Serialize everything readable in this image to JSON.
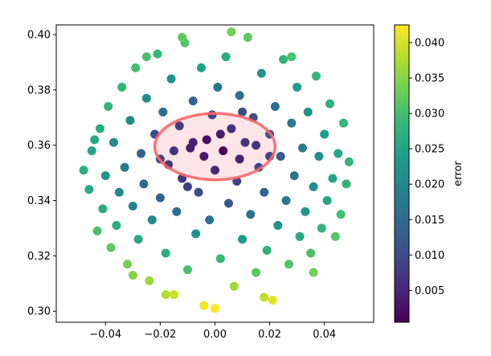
{
  "chart_data": {
    "type": "scatter",
    "title": "",
    "xlabel": "",
    "ylabel": "",
    "xlim": [
      -0.058,
      0.058
    ],
    "ylim": [
      0.296,
      0.4035
    ],
    "xticks": [
      -0.04,
      -0.02,
      0.0,
      0.02,
      0.04
    ],
    "xtick_labels": [
      "−0.04",
      "−0.02",
      "0.00",
      "0.02",
      "0.04"
    ],
    "yticks": [
      0.3,
      0.32,
      0.34,
      0.36,
      0.38,
      0.4
    ],
    "ytick_labels": [
      "0.30",
      "0.32",
      "0.34",
      "0.36",
      "0.38",
      "0.40"
    ],
    "grid": false,
    "colormap": "viridis",
    "colorbar": {
      "label": "error",
      "min": 0.0005,
      "max": 0.0425,
      "ticks": [
        0.005,
        0.01,
        0.015,
        0.02,
        0.025,
        0.03,
        0.035,
        0.04
      ],
      "tick_labels": [
        "0.005",
        "0.010",
        "0.015",
        "0.020",
        "0.025",
        "0.030",
        "0.035",
        "0.040"
      ]
    },
    "annotation": {
      "shape": "ellipse",
      "center": [
        0.0,
        0.3595
      ],
      "width": 0.044,
      "height": 0.024,
      "edge_color": "#ff6666",
      "fill_color": "#ffe4e8"
    },
    "points": [
      [
        -0.048,
        0.351,
        0.0272
      ],
      [
        -0.046,
        0.344,
        0.0255
      ],
      [
        -0.045,
        0.358,
        0.0251
      ],
      [
        -0.043,
        0.329,
        0.0302
      ],
      [
        -0.042,
        0.366,
        0.0266
      ],
      [
        -0.041,
        0.337,
        0.0263
      ],
      [
        -0.04,
        0.349,
        0.0222
      ],
      [
        -0.039,
        0.374,
        0.0282
      ],
      [
        -0.038,
        0.323,
        0.032
      ],
      [
        -0.037,
        0.361,
        0.0214
      ],
      [
        -0.036,
        0.331,
        0.0268
      ],
      [
        -0.035,
        0.343,
        0.0204
      ],
      [
        -0.034,
        0.381,
        0.0286
      ],
      [
        -0.033,
        0.352,
        0.0178
      ],
      [
        -0.032,
        0.317,
        0.0335
      ],
      [
        -0.031,
        0.369,
        0.0206
      ],
      [
        -0.03,
        0.338,
        0.0189
      ],
      [
        -0.029,
        0.388,
        0.0297
      ],
      [
        -0.028,
        0.326,
        0.0258
      ],
      [
        -0.027,
        0.357,
        0.0141
      ],
      [
        -0.026,
        0.346,
        0.0146
      ],
      [
        -0.025,
        0.377,
        0.0213
      ],
      [
        -0.024,
        0.311,
        0.0361
      ],
      [
        -0.023,
        0.333,
        0.0204
      ],
      [
        -0.022,
        0.364,
        0.0103
      ],
      [
        -0.021,
        0.393,
        0.0287
      ],
      [
        -0.02,
        0.341,
        0.014
      ],
      [
        -0.019,
        0.372,
        0.0152
      ],
      [
        -0.018,
        0.321,
        0.0268
      ],
      [
        -0.017,
        0.353,
        0.0078
      ],
      [
        -0.016,
        0.384,
        0.0219
      ],
      [
        -0.015,
        0.306,
        0.0392
      ],
      [
        -0.014,
        0.336,
        0.0154
      ],
      [
        -0.013,
        0.367,
        0.0078
      ],
      [
        -0.012,
        0.348,
        0.0074
      ],
      [
        -0.011,
        0.397,
        0.0311
      ],
      [
        -0.01,
        0.315,
        0.0301
      ],
      [
        -0.009,
        0.359,
        0.0038
      ],
      [
        -0.008,
        0.376,
        0.0137
      ],
      [
        -0.007,
        0.328,
        0.0215
      ],
      [
        -0.006,
        0.343,
        0.0107
      ],
      [
        -0.005,
        0.388,
        0.0243
      ],
      [
        -0.004,
        0.302,
        0.0418
      ],
      [
        -0.003,
        0.362,
        0.002
      ],
      [
        -0.002,
        0.333,
        0.0163
      ],
      [
        -0.001,
        0.371,
        0.0094
      ],
      [
        0.0,
        0.351,
        0.005
      ],
      [
        0.001,
        0.381,
        0.0176
      ],
      [
        0.002,
        0.319,
        0.0288
      ],
      [
        0.003,
        0.358,
        0.0008
      ],
      [
        0.004,
        0.392,
        0.0265
      ],
      [
        0.005,
        0.339,
        0.012
      ],
      [
        0.006,
        0.366,
        0.0066
      ],
      [
        0.007,
        0.309,
        0.0364
      ],
      [
        0.008,
        0.347,
        0.0087
      ],
      [
        0.009,
        0.378,
        0.0158
      ],
      [
        0.01,
        0.326,
        0.0235
      ],
      [
        0.011,
        0.361,
        0.007
      ],
      [
        0.012,
        0.399,
        0.0318
      ],
      [
        0.013,
        0.335,
        0.0165
      ],
      [
        0.014,
        0.37,
        0.0108
      ],
      [
        0.015,
        0.314,
        0.0316
      ],
      [
        0.016,
        0.352,
        0.0097
      ],
      [
        0.017,
        0.386,
        0.0222
      ],
      [
        0.018,
        0.343,
        0.0139
      ],
      [
        0.019,
        0.322,
        0.0272
      ],
      [
        0.02,
        0.364,
        0.0111
      ],
      [
        0.021,
        0.304,
        0.0409
      ],
      [
        0.022,
        0.374,
        0.0162
      ],
      [
        0.023,
        0.331,
        0.022
      ],
      [
        0.024,
        0.356,
        0.0125
      ],
      [
        0.025,
        0.391,
        0.0276
      ],
      [
        0.026,
        0.34,
        0.0177
      ],
      [
        0.027,
        0.317,
        0.031
      ],
      [
        0.028,
        0.368,
        0.0171
      ],
      [
        0.029,
        0.349,
        0.0166
      ],
      [
        0.03,
        0.381,
        0.0231
      ],
      [
        0.031,
        0.327,
        0.0262
      ],
      [
        0.032,
        0.359,
        0.0173
      ],
      [
        0.033,
        0.336,
        0.0223
      ],
      [
        0.034,
        0.372,
        0.0219
      ],
      [
        0.035,
        0.321,
        0.0305
      ],
      [
        0.036,
        0.345,
        0.0209
      ],
      [
        0.037,
        0.385,
        0.0285
      ],
      [
        0.038,
        0.356,
        0.0211
      ],
      [
        0.039,
        0.33,
        0.0279
      ],
      [
        0.04,
        0.364,
        0.0236
      ],
      [
        0.041,
        0.34,
        0.0254
      ],
      [
        0.042,
        0.375,
        0.0271
      ],
      [
        0.043,
        0.348,
        0.0249
      ],
      [
        0.044,
        0.327,
        0.0314
      ],
      [
        0.045,
        0.357,
        0.0256
      ],
      [
        0.046,
        0.335,
        0.0295
      ],
      [
        0.047,
        0.368,
        0.0283
      ],
      [
        0.048,
        0.346,
        0.0278
      ],
      [
        0.049,
        0.354,
        0.028
      ],
      [
        -0.044,
        0.362,
        0.0258
      ],
      [
        -0.03,
        0.313,
        0.0346
      ],
      [
        -0.025,
        0.392,
        0.0301
      ],
      [
        -0.018,
        0.306,
        0.0379
      ],
      [
        -0.012,
        0.399,
        0.0322
      ],
      [
        0.0,
        0.301,
        0.0425
      ],
      [
        0.006,
        0.401,
        0.0335
      ],
      [
        0.018,
        0.305,
        0.0389
      ],
      [
        0.028,
        0.392,
        0.0306
      ],
      [
        0.036,
        0.314,
        0.0336
      ],
      [
        -0.004,
        0.356,
        0.0035
      ],
      [
        0.002,
        0.364,
        0.0036
      ],
      [
        -0.008,
        0.361,
        0.0045
      ],
      [
        0.009,
        0.355,
        0.0044
      ],
      [
        -0.015,
        0.358,
        0.0069
      ],
      [
        0.015,
        0.36,
        0.007
      ],
      [
        -0.02,
        0.355,
        0.0093
      ],
      [
        0.02,
        0.356,
        0.0094
      ],
      [
        -0.01,
        0.345,
        0.0082
      ],
      [
        0.01,
        0.372,
        0.011
      ]
    ]
  }
}
